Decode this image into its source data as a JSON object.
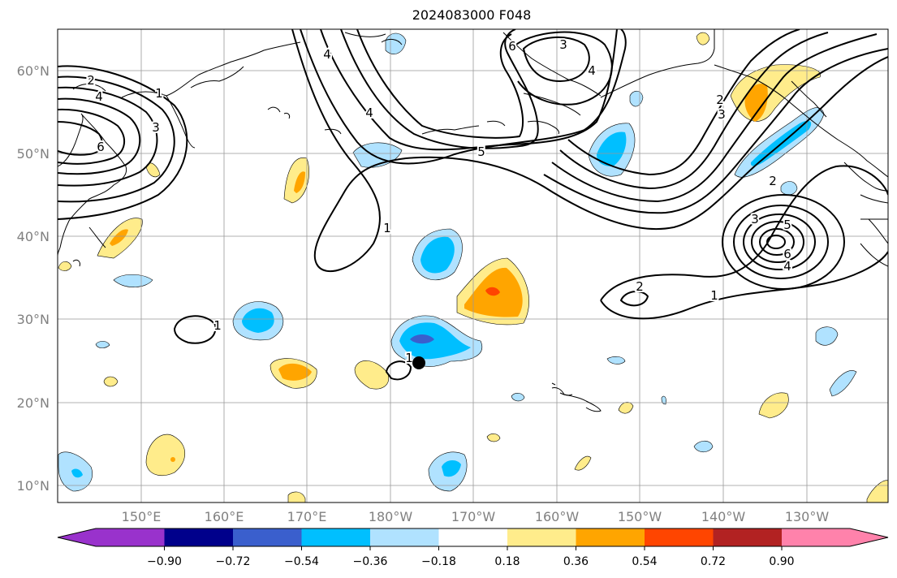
{
  "title": "2024083000 F048",
  "map": {
    "lat_labels": [
      "60°N",
      "50°N",
      "40°N",
      "30°N",
      "20°N",
      "10°N"
    ],
    "lon_labels": [
      "150°E",
      "160°E",
      "170°E",
      "180°W",
      "170°W",
      "160°W",
      "150°W",
      "140°W",
      "130°W"
    ],
    "contour_labels": [
      "2",
      "4",
      "6",
      "1",
      "3",
      "4",
      "4",
      "5",
      "3",
      "4",
      "6",
      "2",
      "3",
      "1",
      "2",
      "3",
      "5",
      "6",
      "4",
      "2",
      "1",
      "1",
      "1"
    ],
    "marker": "storm-position-dot"
  },
  "colorbar": {
    "ticks": [
      "−0.90",
      "−0.72",
      "−0.54",
      "−0.36",
      "−0.18",
      "0.18",
      "0.36",
      "0.54",
      "0.72",
      "0.90"
    ],
    "colors": [
      "#9932CC",
      "#00008B",
      "#3A5FCD",
      "#00BFFF",
      "#B0E2FF",
      "#FFFFFF",
      "#FFEC8B",
      "#FFA500",
      "#FF4500",
      "#B22222",
      "#FF82AB"
    ]
  }
}
